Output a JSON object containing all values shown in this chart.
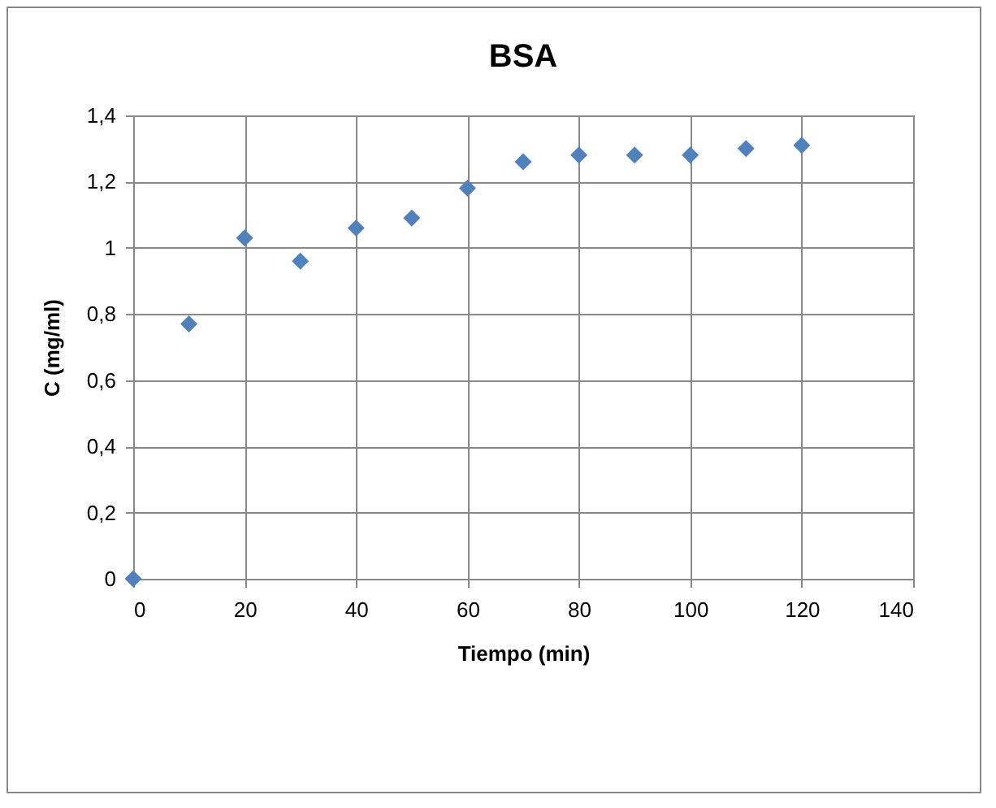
{
  "chart_data": {
    "type": "scatter",
    "title": "BSA",
    "xlabel": "Tiempo (min)",
    "ylabel": "C (mg/ml)",
    "x": [
      0,
      10,
      20,
      30,
      40,
      50,
      60,
      70,
      80,
      90,
      100,
      110,
      120
    ],
    "series": [
      {
        "color": "#4f81bd",
        "values": [
          0,
          0.77,
          1.03,
          0.96,
          1.06,
          1.09,
          1.18,
          1.26,
          1.28,
          1.28,
          1.28,
          1.3,
          1.31
        ]
      }
    ],
    "xlim": [
      0,
      140
    ],
    "xticks": [
      0,
      20,
      40,
      60,
      80,
      100,
      120,
      140
    ],
    "ylim": [
      0,
      1.4
    ],
    "yticks": [
      0,
      {
        "value": 0.2,
        "label": "0,2"
      },
      {
        "value": 0.4,
        "label": "0,4"
      },
      {
        "value": 0.6,
        "label": "0,6"
      },
      {
        "value": 0.8,
        "label": "0,8"
      },
      1,
      {
        "value": 1.2,
        "label": "1,2"
      },
      {
        "value": 1.4,
        "label": "1,4"
      }
    ],
    "grid": true,
    "marker": "diamond"
  }
}
